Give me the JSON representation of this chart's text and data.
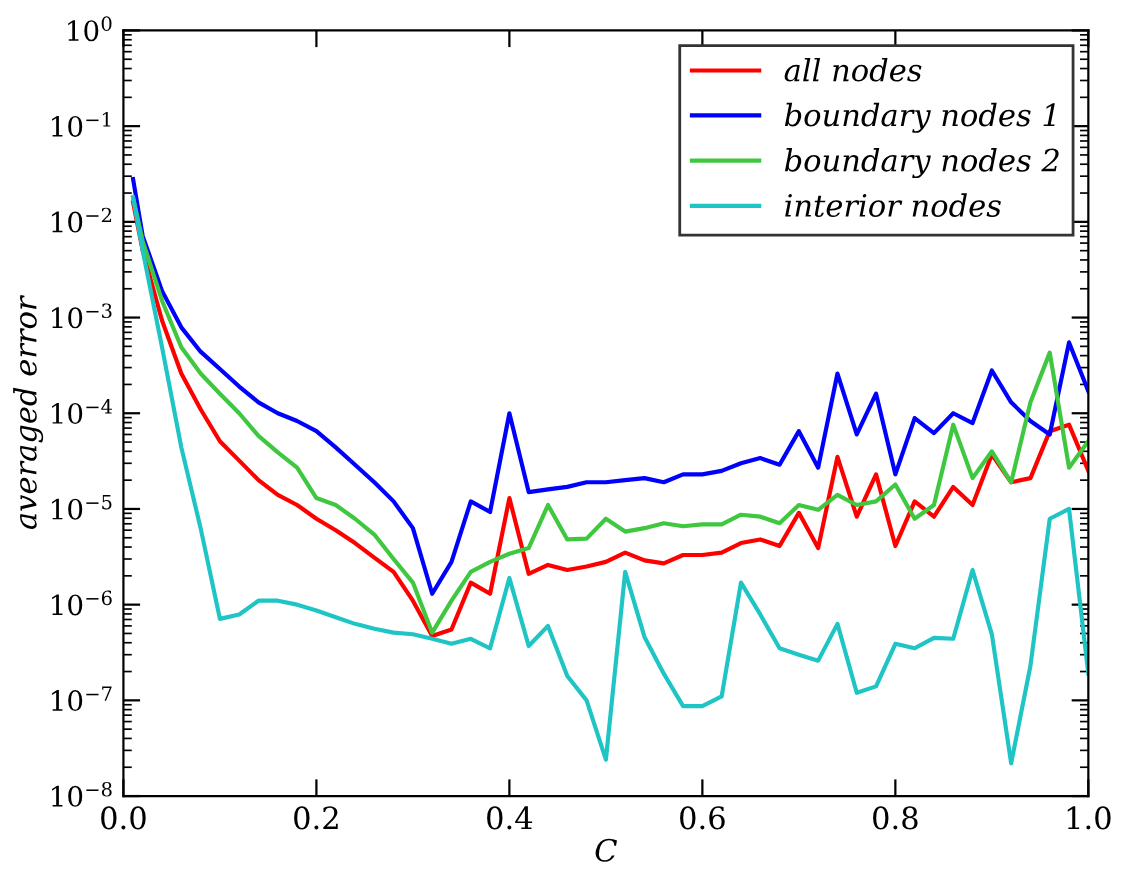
{
  "chart_data": {
    "type": "line",
    "xlabel": "C",
    "ylabel": "averaged error",
    "x": [
      0.01,
      0.02,
      0.04,
      0.06,
      0.08,
      0.1,
      0.12,
      0.14,
      0.16,
      0.18,
      0.2,
      0.22,
      0.24,
      0.26,
      0.28,
      0.3,
      0.32,
      0.34,
      0.36,
      0.38,
      0.4,
      0.42,
      0.44,
      0.46,
      0.48,
      0.5,
      0.52,
      0.54,
      0.56,
      0.58,
      0.6,
      0.62,
      0.64,
      0.66,
      0.68,
      0.7,
      0.72,
      0.74,
      0.76,
      0.78,
      0.8,
      0.82,
      0.84,
      0.86,
      0.88,
      0.9,
      0.92,
      0.94,
      0.96,
      0.98,
      1.0
    ],
    "series": [
      {
        "name": "all nodes",
        "color": "#ff0000",
        "values": [
          0.016,
          0.005,
          0.00093,
          0.00026,
          0.00011,
          5.1e-05,
          3.2e-05,
          2e-05,
          1.4e-05,
          1.1e-05,
          7.9e-06,
          6e-06,
          4.4e-06,
          3.1e-06,
          2.2e-06,
          1.1e-06,
          4.7e-07,
          5.5e-07,
          1.7e-06,
          1.3e-06,
          1.3e-05,
          2.1e-06,
          2.6e-06,
          2.3e-06,
          2.5e-06,
          2.8e-06,
          3.5e-06,
          2.9e-06,
          2.7e-06,
          3.3e-06,
          3.3e-06,
          3.5e-06,
          4.4e-06,
          4.8e-06,
          4.1e-06,
          9.1e-06,
          3.9e-06,
          3.5e-05,
          8.3e-06,
          2.3e-05,
          4.1e-06,
          1.2e-05,
          8.3e-06,
          1.7e-05,
          1.1e-05,
          3.7e-05,
          1.9e-05,
          2.1e-05,
          6.5e-05,
          7.6e-05,
          2.5e-05
        ]
      },
      {
        "name": "boundary nodes 1",
        "color": "#0000ff",
        "values": [
          0.028,
          0.0071,
          0.0019,
          0.00079,
          0.00044,
          0.00029,
          0.00019,
          0.00013,
          0.0001,
          8.3e-05,
          6.5e-05,
          4.4e-05,
          2.9e-05,
          1.9e-05,
          1.2e-05,
          6.3e-06,
          1.3e-06,
          2.8e-06,
          1.2e-05,
          9.3e-06,
          0.0001,
          1.5e-05,
          1.6e-05,
          1.7e-05,
          1.9e-05,
          1.9e-05,
          2e-05,
          2.1e-05,
          1.9e-05,
          2.3e-05,
          2.3e-05,
          2.5e-05,
          3e-05,
          3.4e-05,
          2.9e-05,
          6.5e-05,
          2.7e-05,
          0.00026,
          6e-05,
          0.00016,
          2.3e-05,
          8.9e-05,
          6.2e-05,
          0.0001,
          7.9e-05,
          0.00028,
          0.00013,
          8.3e-05,
          6e-05,
          0.00055,
          0.00017
        ]
      },
      {
        "name": "boundary nodes 2",
        "color": "#3fc83f",
        "values": [
          0.018,
          0.0063,
          0.0015,
          0.00049,
          0.00026,
          0.00016,
          0.0001,
          5.8e-05,
          3.9e-05,
          2.7e-05,
          1.3e-05,
          1.1e-05,
          7.9e-06,
          5.4e-06,
          3e-06,
          1.7e-06,
          5.1e-07,
          1.1e-06,
          2.2e-06,
          2.8e-06,
          3.4e-06,
          3.9e-06,
          1.1e-05,
          4.8e-06,
          4.9e-06,
          7.9e-06,
          5.8e-06,
          6.3e-06,
          7.1e-06,
          6.6e-06,
          6.9e-06,
          6.9e-06,
          8.7e-06,
          8.3e-06,
          7.1e-06,
          1.1e-05,
          9.8e-06,
          1.4e-05,
          1.1e-05,
          1.2e-05,
          1.8e-05,
          7.9e-06,
          1.1e-05,
          7.6e-05,
          2.1e-05,
          4e-05,
          1.9e-05,
          0.00013,
          0.00043,
          2.7e-05,
          5.1e-05
        ]
      },
      {
        "name": "interior nodes",
        "color": "#1fc4c4",
        "values": [
          0.018,
          0.005,
          0.00049,
          4.4e-05,
          6.3e-06,
          7.1e-07,
          7.9e-07,
          1.1e-06,
          1.1e-06,
          1e-06,
          8.7e-07,
          7.4e-07,
          6.3e-07,
          5.6e-07,
          5.1e-07,
          4.9e-07,
          4.4e-07,
          3.9e-07,
          4.4e-07,
          3.5e-07,
          1.9e-06,
          3.7e-07,
          6e-07,
          1.8e-07,
          1e-07,
          2.4e-08,
          2.2e-06,
          4.6e-07,
          1.9e-07,
          8.7e-08,
          8.7e-08,
          1.1e-07,
          1.7e-06,
          7.9e-07,
          3.5e-07,
          3e-07,
          2.6e-07,
          6.3e-07,
          1.2e-07,
          1.4e-07,
          3.9e-07,
          3.5e-07,
          4.5e-07,
          4.4e-07,
          2.3e-06,
          4.9e-07,
          2.2e-08,
          2.3e-07,
          7.9e-06,
          1e-05,
          1.9e-07
        ]
      }
    ],
    "log": "y",
    "xlim": [
      0.0,
      1.0
    ],
    "ylim": [
      1e-08,
      1
    ],
    "xticks": [
      {
        "value": 0.0,
        "label": "0.0"
      },
      {
        "value": 0.2,
        "label": "0.2"
      },
      {
        "value": 0.4,
        "label": "0.4"
      },
      {
        "value": 0.6,
        "label": "0.6"
      },
      {
        "value": 0.8,
        "label": "0.8"
      },
      {
        "value": 1.0,
        "label": "1.0"
      }
    ],
    "yticks": [
      {
        "value": 1e-08,
        "label": "10$^{−8}$"
      },
      {
        "value": 1e-07,
        "label": "10$^{−7}$"
      },
      {
        "value": 1e-06,
        "label": "10$^{−6}$"
      },
      {
        "value": 1e-05,
        "label": "10$^{−5}$"
      },
      {
        "value": 0.0001,
        "label": "10$^{−4}$"
      },
      {
        "value": 0.001,
        "label": "10$^{−3}$"
      },
      {
        "value": 0.01,
        "label": "10$^{−2}$"
      },
      {
        "value": 0.1,
        "label": "10$^{−1}$"
      },
      {
        "value": 1,
        "label": "10$^{0}$"
      }
    ],
    "grid": false,
    "legend": "top right",
    "marker": "none",
    "line_style": "solid"
  }
}
